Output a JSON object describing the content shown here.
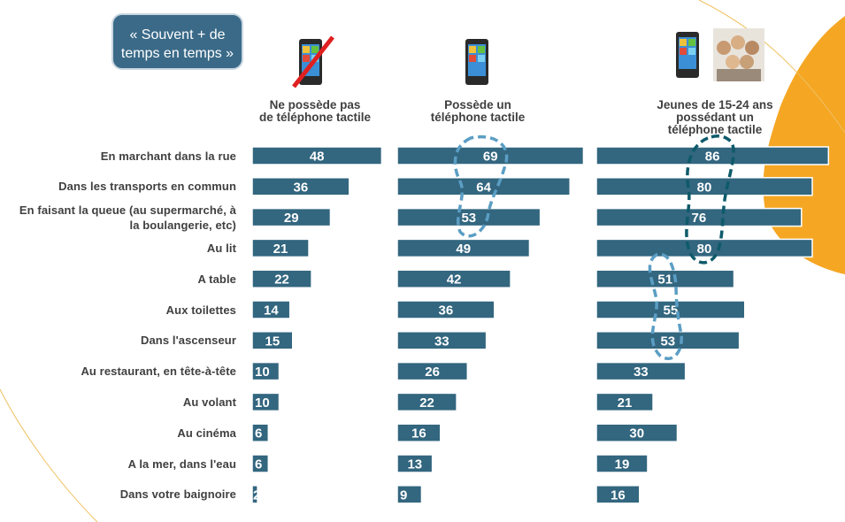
{
  "legend": {
    "line1": "« Souvent + de",
    "line2": "temps en temps »"
  },
  "colors": {
    "bar": "#33667f",
    "bar_border": "#ffffff",
    "legend_bg": "#3a6a88",
    "highlight_light": "#5b9ec4",
    "highlight_dark": "#0e5a6a",
    "accent_orange": "#f5a623"
  },
  "chart_data": {
    "type": "bar",
    "orientation": "horizontal",
    "categories": [
      "En marchant dans la rue",
      "Dans les transports en commun",
      "En faisant la queue (au supermarché, à la boulangerie, etc)",
      "Au lit",
      "A table",
      "Aux toilettes",
      "Dans l'ascenseur",
      "Au restaurant, en tête-à-tête",
      "Au volant",
      "Au cinéma",
      "A la mer, dans l'eau",
      "Dans votre baignoire"
    ],
    "category_lines": [
      [
        "En marchant dans la rue"
      ],
      [
        "Dans les transports en commun"
      ],
      [
        "En faisant la queue (au supermarché, à",
        "la boulangerie, etc)"
      ],
      [
        "Au lit"
      ],
      [
        "A table"
      ],
      [
        "Aux toilettes"
      ],
      [
        "Dans l'ascenseur"
      ],
      [
        "Au restaurant, en tête-à-tête"
      ],
      [
        "Au volant"
      ],
      [
        "Au cinéma"
      ],
      [
        "A la mer, dans l'eau"
      ],
      [
        "Dans votre baignoire"
      ]
    ],
    "series": [
      {
        "name": "Ne possède pas de téléphone tactile",
        "title_lines": [
          "Ne possède pas",
          "de téléphone tactile"
        ],
        "values": [
          48,
          36,
          29,
          21,
          22,
          14,
          15,
          10,
          10,
          6,
          6,
          2
        ]
      },
      {
        "name": "Possède un téléphone tactile",
        "title_lines": [
          "Possède un",
          "téléphone tactile"
        ],
        "values": [
          69,
          64,
          53,
          49,
          42,
          36,
          33,
          26,
          22,
          16,
          13,
          9
        ]
      },
      {
        "name": "Jeunes de 15-24 ans possédant un téléphone tactile",
        "title_lines": [
          "Jeunes de 15-24 ans",
          "possédant un",
          "téléphone tactile"
        ],
        "values": [
          86,
          80,
          76,
          80,
          51,
          55,
          53,
          33,
          21,
          30,
          19,
          16
        ]
      }
    ],
    "xlim": [
      0,
      100
    ]
  }
}
